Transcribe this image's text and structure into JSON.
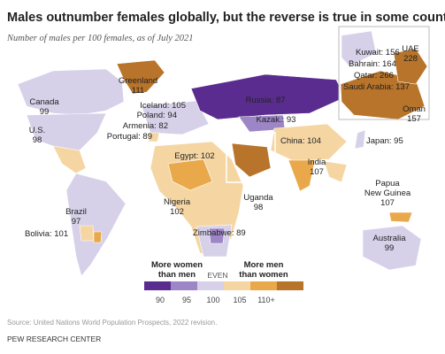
{
  "header": {
    "title": "Males outnumber females globally, but the reverse is true in some countries",
    "subtitle": "Number of males per 100 females, as of July 2021"
  },
  "labels": [
    {
      "lines": [
        "Greenland",
        "111"
      ]
    },
    {
      "lines": [
        "Canada",
        "99"
      ]
    },
    {
      "lines": [
        "U.S.",
        "98"
      ]
    },
    {
      "lines": [
        "Iceland: 105"
      ]
    },
    {
      "lines": [
        "Poland: 94"
      ]
    },
    {
      "lines": [
        "Armenia: 82"
      ]
    },
    {
      "lines": [
        "Portugal: 89"
      ]
    },
    {
      "lines": [
        "Russia: 87"
      ]
    },
    {
      "lines": [
        "Kazak.: 93"
      ]
    },
    {
      "lines": [
        "Kuwait: 156"
      ]
    },
    {
      "lines": [
        "UAE",
        "228"
      ]
    },
    {
      "lines": [
        "Bahrain: 164"
      ]
    },
    {
      "lines": [
        "Qatar: 266"
      ]
    },
    {
      "lines": [
        "Saudi Arabia: 137"
      ]
    },
    {
      "lines": [
        "Oman",
        "157"
      ]
    },
    {
      "lines": [
        "Egypt: 102"
      ]
    },
    {
      "lines": [
        "China: 104"
      ]
    },
    {
      "lines": [
        "Japan: 95"
      ]
    },
    {
      "lines": [
        "India",
        "107"
      ]
    },
    {
      "lines": [
        "Nigeria",
        "102"
      ]
    },
    {
      "lines": [
        "Uganda",
        "98"
      ]
    },
    {
      "lines": [
        "Papua",
        "New Guinea",
        "107"
      ]
    },
    {
      "lines": [
        "Brazil",
        "97"
      ]
    },
    {
      "lines": [
        "Bolivia: 101"
      ]
    },
    {
      "lines": [
        "Zimbabwe: 89"
      ]
    },
    {
      "lines": [
        "Australia",
        "99"
      ]
    }
  ],
  "legend": {
    "left_label": [
      "More women",
      "than men"
    ],
    "right_label": [
      "More men",
      "than women"
    ],
    "even": "EVEN",
    "ticks": [
      "90",
      "95",
      "100",
      "105",
      "110+"
    ],
    "colors": [
      "#5b2c8f",
      "#9d86c6",
      "#d6d1e9",
      "#f5d6a3",
      "#e9a94b",
      "#b7742a"
    ]
  },
  "footer": {
    "source": "Source: United Nations World Population Prospects, 2022 revision.",
    "publisher": "PEW RESEARCH CENTER"
  }
}
